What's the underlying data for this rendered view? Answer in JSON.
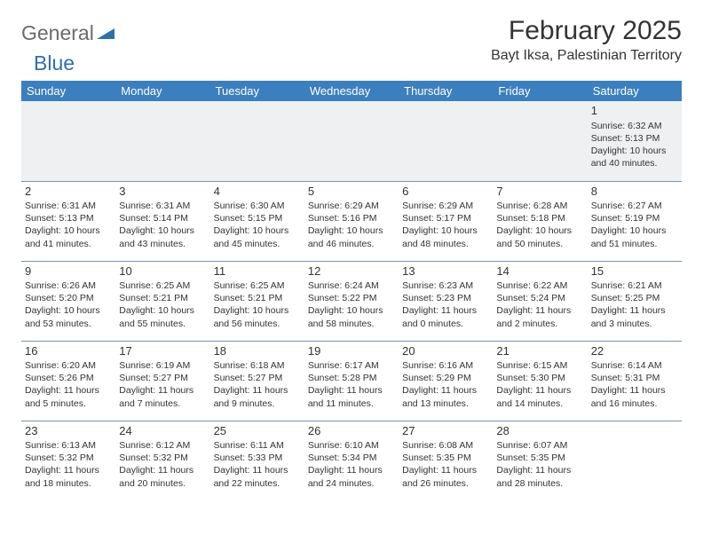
{
  "logo": {
    "general": "General",
    "blue": "Blue"
  },
  "title": "February 2025",
  "location": "Bayt Iksa, Palestinian Territory",
  "colors": {
    "header_bg": "#3b7fbf",
    "header_text": "#ffffff",
    "stripe_bg": "#eef0f1",
    "border": "#7a93ab",
    "logo_gray": "#6b6b6b",
    "logo_blue": "#2f6fad"
  },
  "weekdays": [
    "Sunday",
    "Monday",
    "Tuesday",
    "Wednesday",
    "Thursday",
    "Friday",
    "Saturday"
  ],
  "startOffset": 6,
  "days": [
    {
      "n": 1,
      "sunrise": "6:32 AM",
      "sunset": "5:13 PM",
      "daylight": "10 hours and 40 minutes."
    },
    {
      "n": 2,
      "sunrise": "6:31 AM",
      "sunset": "5:13 PM",
      "daylight": "10 hours and 41 minutes."
    },
    {
      "n": 3,
      "sunrise": "6:31 AM",
      "sunset": "5:14 PM",
      "daylight": "10 hours and 43 minutes."
    },
    {
      "n": 4,
      "sunrise": "6:30 AM",
      "sunset": "5:15 PM",
      "daylight": "10 hours and 45 minutes."
    },
    {
      "n": 5,
      "sunrise": "6:29 AM",
      "sunset": "5:16 PM",
      "daylight": "10 hours and 46 minutes."
    },
    {
      "n": 6,
      "sunrise": "6:29 AM",
      "sunset": "5:17 PM",
      "daylight": "10 hours and 48 minutes."
    },
    {
      "n": 7,
      "sunrise": "6:28 AM",
      "sunset": "5:18 PM",
      "daylight": "10 hours and 50 minutes."
    },
    {
      "n": 8,
      "sunrise": "6:27 AM",
      "sunset": "5:19 PM",
      "daylight": "10 hours and 51 minutes."
    },
    {
      "n": 9,
      "sunrise": "6:26 AM",
      "sunset": "5:20 PM",
      "daylight": "10 hours and 53 minutes."
    },
    {
      "n": 10,
      "sunrise": "6:25 AM",
      "sunset": "5:21 PM",
      "daylight": "10 hours and 55 minutes."
    },
    {
      "n": 11,
      "sunrise": "6:25 AM",
      "sunset": "5:21 PM",
      "daylight": "10 hours and 56 minutes."
    },
    {
      "n": 12,
      "sunrise": "6:24 AM",
      "sunset": "5:22 PM",
      "daylight": "10 hours and 58 minutes."
    },
    {
      "n": 13,
      "sunrise": "6:23 AM",
      "sunset": "5:23 PM",
      "daylight": "11 hours and 0 minutes."
    },
    {
      "n": 14,
      "sunrise": "6:22 AM",
      "sunset": "5:24 PM",
      "daylight": "11 hours and 2 minutes."
    },
    {
      "n": 15,
      "sunrise": "6:21 AM",
      "sunset": "5:25 PM",
      "daylight": "11 hours and 3 minutes."
    },
    {
      "n": 16,
      "sunrise": "6:20 AM",
      "sunset": "5:26 PM",
      "daylight": "11 hours and 5 minutes."
    },
    {
      "n": 17,
      "sunrise": "6:19 AM",
      "sunset": "5:27 PM",
      "daylight": "11 hours and 7 minutes."
    },
    {
      "n": 18,
      "sunrise": "6:18 AM",
      "sunset": "5:27 PM",
      "daylight": "11 hours and 9 minutes."
    },
    {
      "n": 19,
      "sunrise": "6:17 AM",
      "sunset": "5:28 PM",
      "daylight": "11 hours and 11 minutes."
    },
    {
      "n": 20,
      "sunrise": "6:16 AM",
      "sunset": "5:29 PM",
      "daylight": "11 hours and 13 minutes."
    },
    {
      "n": 21,
      "sunrise": "6:15 AM",
      "sunset": "5:30 PM",
      "daylight": "11 hours and 14 minutes."
    },
    {
      "n": 22,
      "sunrise": "6:14 AM",
      "sunset": "5:31 PM",
      "daylight": "11 hours and 16 minutes."
    },
    {
      "n": 23,
      "sunrise": "6:13 AM",
      "sunset": "5:32 PM",
      "daylight": "11 hours and 18 minutes."
    },
    {
      "n": 24,
      "sunrise": "6:12 AM",
      "sunset": "5:32 PM",
      "daylight": "11 hours and 20 minutes."
    },
    {
      "n": 25,
      "sunrise": "6:11 AM",
      "sunset": "5:33 PM",
      "daylight": "11 hours and 22 minutes."
    },
    {
      "n": 26,
      "sunrise": "6:10 AM",
      "sunset": "5:34 PM",
      "daylight": "11 hours and 24 minutes."
    },
    {
      "n": 27,
      "sunrise": "6:08 AM",
      "sunset": "5:35 PM",
      "daylight": "11 hours and 26 minutes."
    },
    {
      "n": 28,
      "sunrise": "6:07 AM",
      "sunset": "5:35 PM",
      "daylight": "11 hours and 28 minutes."
    }
  ],
  "labels": {
    "sunrise": "Sunrise:",
    "sunset": "Sunset:",
    "daylight": "Daylight:"
  }
}
